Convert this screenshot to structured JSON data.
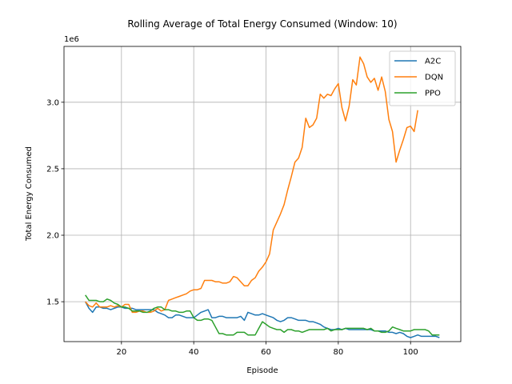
{
  "chart_data": {
    "type": "line",
    "title": "Rolling Average of Total Energy Consumed (Window: 10)",
    "xlabel": "Episode",
    "ylabel": "Total Energy Consumed",
    "y_offset_label": "1e6",
    "xlim": [
      4.1,
      113.9
    ],
    "ylim": [
      1200000,
      3420000
    ],
    "x_ticks": [
      20,
      40,
      60,
      80,
      100
    ],
    "y_ticks": [
      1500000,
      2000000,
      2500000,
      3000000
    ],
    "x_tick_labels": [
      "20",
      "40",
      "60",
      "80",
      "100"
    ],
    "y_tick_labels": [
      "1.5",
      "2.0",
      "2.5",
      "3.0"
    ],
    "grid": true,
    "legend_position": "top-right",
    "series": [
      {
        "name": "A2C",
        "color": "#1f77b4",
        "x": [
          10,
          11,
          12,
          13,
          14,
          15,
          16,
          17,
          18,
          19,
          20,
          21,
          22,
          23,
          24,
          25,
          26,
          27,
          28,
          29,
          30,
          31,
          32,
          33,
          34,
          35,
          36,
          37,
          38,
          39,
          40,
          41,
          42,
          43,
          44,
          45,
          46,
          47,
          48,
          49,
          50,
          51,
          52,
          53,
          54,
          55,
          56,
          57,
          58,
          59,
          60,
          61,
          62,
          63,
          64,
          65,
          66,
          67,
          68,
          69,
          70,
          71,
          72,
          73,
          74,
          75,
          76,
          77,
          78,
          79,
          80,
          81,
          82,
          83,
          84,
          85,
          86,
          87,
          88,
          89,
          90,
          91,
          92,
          93,
          94,
          95,
          96,
          97,
          98,
          99,
          100,
          101,
          102,
          103,
          104,
          105,
          106,
          107,
          108
        ],
        "values": [
          1500000,
          1450000,
          1420000,
          1460000,
          1460000,
          1450000,
          1450000,
          1440000,
          1450000,
          1460000,
          1460000,
          1450000,
          1450000,
          1450000,
          1440000,
          1440000,
          1440000,
          1440000,
          1440000,
          1440000,
          1420000,
          1410000,
          1400000,
          1380000,
          1380000,
          1400000,
          1400000,
          1390000,
          1380000,
          1380000,
          1380000,
          1400000,
          1420000,
          1430000,
          1440000,
          1380000,
          1380000,
          1390000,
          1390000,
          1380000,
          1380000,
          1380000,
          1380000,
          1390000,
          1360000,
          1420000,
          1410000,
          1400000,
          1400000,
          1410000,
          1400000,
          1390000,
          1380000,
          1360000,
          1350000,
          1360000,
          1380000,
          1380000,
          1370000,
          1360000,
          1360000,
          1360000,
          1350000,
          1350000,
          1340000,
          1330000,
          1310000,
          1300000,
          1290000,
          1290000,
          1300000,
          1290000,
          1300000,
          1290000,
          1290000,
          1290000,
          1290000,
          1290000,
          1290000,
          1290000,
          1280000,
          1280000,
          1280000,
          1280000,
          1270000,
          1270000,
          1260000,
          1270000,
          1260000,
          1240000,
          1230000,
          1240000,
          1250000,
          1240000,
          1240000,
          1240000,
          1240000,
          1240000,
          1230000
        ]
      },
      {
        "name": "DQN",
        "color": "#ff7f0e",
        "x": [
          10,
          11,
          12,
          13,
          14,
          15,
          16,
          17,
          18,
          19,
          20,
          21,
          22,
          23,
          24,
          25,
          26,
          27,
          28,
          29,
          30,
          31,
          32,
          33,
          34,
          35,
          36,
          37,
          38,
          39,
          40,
          41,
          42,
          43,
          44,
          45,
          46,
          47,
          48,
          49,
          50,
          51,
          52,
          53,
          54,
          55,
          56,
          57,
          58,
          59,
          60,
          61,
          62,
          63,
          64,
          65,
          66,
          67,
          68,
          69,
          70,
          71,
          72,
          73,
          74,
          75,
          76,
          77,
          78,
          79,
          80,
          81,
          82,
          83,
          84,
          85,
          86,
          87,
          88,
          89,
          90,
          91,
          92,
          93,
          94,
          95,
          96,
          97,
          98,
          99,
          100,
          101,
          102
        ],
        "values": [
          1500000,
          1470000,
          1460000,
          1490000,
          1460000,
          1460000,
          1460000,
          1470000,
          1460000,
          1470000,
          1460000,
          1480000,
          1480000,
          1420000,
          1420000,
          1430000,
          1430000,
          1420000,
          1420000,
          1430000,
          1450000,
          1430000,
          1440000,
          1510000,
          1520000,
          1530000,
          1540000,
          1550000,
          1560000,
          1580000,
          1590000,
          1590000,
          1600000,
          1660000,
          1660000,
          1660000,
          1650000,
          1650000,
          1640000,
          1640000,
          1650000,
          1690000,
          1680000,
          1650000,
          1620000,
          1620000,
          1660000,
          1680000,
          1730000,
          1760000,
          1800000,
          1860000,
          2040000,
          2100000,
          2160000,
          2230000,
          2340000,
          2440000,
          2550000,
          2580000,
          2660000,
          2880000,
          2810000,
          2830000,
          2880000,
          3060000,
          3030000,
          3060000,
          3050000,
          3100000,
          3140000,
          2960000,
          2860000,
          2970000,
          3170000,
          3130000,
          3340000,
          3290000,
          3190000,
          3150000,
          3180000,
          3090000,
          3190000,
          3080000,
          2870000,
          2780000,
          2550000,
          2640000,
          2720000,
          2810000,
          2820000,
          2780000,
          2940000
        ]
      },
      {
        "name": "PPO",
        "color": "#2ca02c",
        "x": [
          10,
          11,
          12,
          13,
          14,
          15,
          16,
          17,
          18,
          19,
          20,
          21,
          22,
          23,
          24,
          25,
          26,
          27,
          28,
          29,
          30,
          31,
          32,
          33,
          34,
          35,
          36,
          37,
          38,
          39,
          40,
          41,
          42,
          43,
          44,
          45,
          46,
          47,
          48,
          49,
          50,
          51,
          52,
          53,
          54,
          55,
          56,
          57,
          58,
          59,
          60,
          61,
          62,
          63,
          64,
          65,
          66,
          67,
          68,
          69,
          70,
          71,
          72,
          73,
          74,
          75,
          76,
          77,
          78,
          79,
          80,
          81,
          82,
          83,
          84,
          85,
          86,
          87,
          88,
          89,
          90,
          91,
          92,
          93,
          94,
          95,
          96,
          97,
          98,
          99,
          100,
          101,
          102,
          103,
          104,
          105,
          106,
          107,
          108
        ],
        "values": [
          1550000,
          1510000,
          1510000,
          1510000,
          1500000,
          1500000,
          1520000,
          1510000,
          1490000,
          1480000,
          1460000,
          1460000,
          1450000,
          1430000,
          1430000,
          1430000,
          1420000,
          1420000,
          1430000,
          1450000,
          1460000,
          1460000,
          1440000,
          1440000,
          1430000,
          1430000,
          1420000,
          1420000,
          1430000,
          1430000,
          1380000,
          1360000,
          1360000,
          1370000,
          1370000,
          1360000,
          1310000,
          1260000,
          1260000,
          1250000,
          1250000,
          1250000,
          1270000,
          1270000,
          1270000,
          1250000,
          1250000,
          1250000,
          1300000,
          1350000,
          1330000,
          1310000,
          1300000,
          1290000,
          1290000,
          1270000,
          1290000,
          1290000,
          1280000,
          1280000,
          1270000,
          1280000,
          1290000,
          1290000,
          1290000,
          1290000,
          1290000,
          1300000,
          1280000,
          1290000,
          1290000,
          1290000,
          1300000,
          1300000,
          1300000,
          1300000,
          1300000,
          1300000,
          1290000,
          1300000,
          1280000,
          1280000,
          1270000,
          1270000,
          1280000,
          1310000,
          1300000,
          1290000,
          1280000,
          1280000,
          1280000,
          1290000,
          1290000,
          1290000,
          1290000,
          1280000,
          1250000,
          1250000,
          1250000
        ]
      }
    ]
  }
}
